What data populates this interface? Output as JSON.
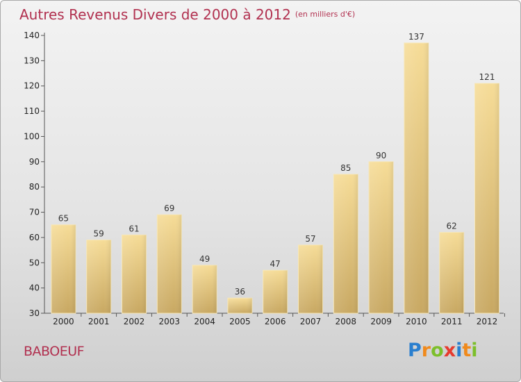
{
  "chart_data": {
    "type": "bar",
    "title": "Autres Revenus Divers de 2000 à 2012",
    "subtitle": "(en milliers d'€)",
    "categories": [
      "2000",
      "2001",
      "2002",
      "2003",
      "2004",
      "2005",
      "2006",
      "2007",
      "2008",
      "2009",
      "2010",
      "2011",
      "2012"
    ],
    "values": [
      65,
      59,
      61,
      69,
      49,
      36,
      47,
      57,
      85,
      90,
      137,
      62,
      121
    ],
    "ylim": [
      30,
      140
    ],
    "yticks": [
      30,
      40,
      50,
      60,
      70,
      80,
      90,
      100,
      110,
      120,
      130,
      140
    ],
    "grid": false,
    "legend": "none",
    "bar_color": "#e6c67e"
  },
  "footer": {
    "city": "BABOEUF",
    "logo_letters": [
      "P",
      "r",
      "o",
      "x",
      "i",
      "t",
      "i"
    ],
    "logo_colors": [
      "#2a7fcf",
      "#f08a1c",
      "#7cbf2a",
      "#e63b2e",
      "#2a7fcf",
      "#f08a1c",
      "#7cbf2a"
    ]
  }
}
